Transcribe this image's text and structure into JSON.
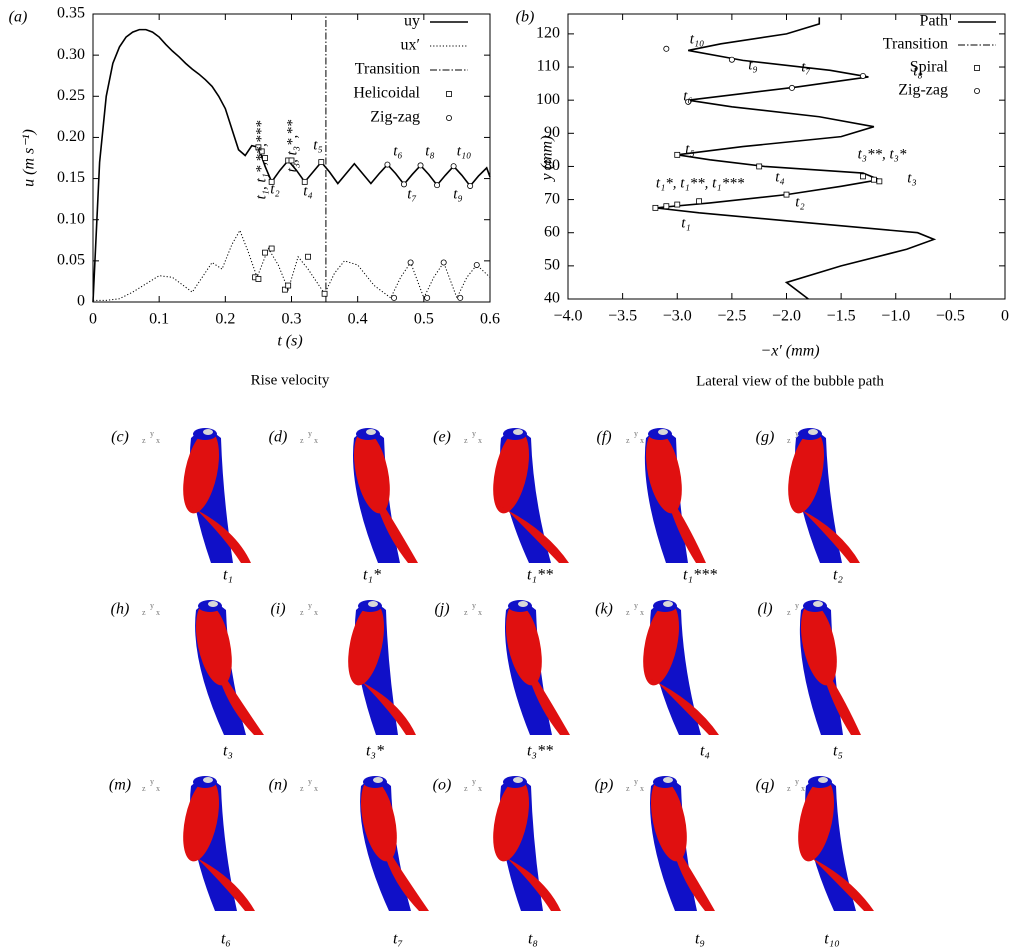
{
  "chart_data": [
    {
      "type": "line",
      "panel": "(a)",
      "xlabel": "t (s)",
      "ylabel": "u (m s⁻¹)",
      "caption": "Rise velocity",
      "xlim": [
        0,
        0.6
      ],
      "ylim": [
        0,
        0.35
      ],
      "xticks": [
        0,
        0.1,
        0.2,
        0.3,
        0.4,
        0.5,
        0.6
      ],
      "yticks": [
        0,
        0.05,
        {
          "value": 0.1,
          "label": "0.10"
        },
        0.15,
        {
          "value": 0.2,
          "label": "0.20"
        },
        0.25,
        {
          "value": 0.3,
          "label": "0.30"
        },
        0.35
      ],
      "legend": "upper right",
      "series": [
        {
          "name": "uy",
          "color": "#000",
          "style": "solid",
          "x": [
            0,
            0.01,
            0.02,
            0.03,
            0.04,
            0.05,
            0.06,
            0.07,
            0.08,
            0.09,
            0.1,
            0.11,
            0.12,
            0.13,
            0.14,
            0.15,
            0.16,
            0.17,
            0.18,
            0.19,
            0.2,
            0.21,
            0.22,
            0.23,
            0.24,
            0.25,
            0.26,
            0.27,
            0.2825,
            0.295,
            0.3075,
            0.32,
            0.3325,
            0.345,
            0.3575,
            0.37,
            0.3825,
            0.395,
            0.4075,
            0.42,
            0.4325,
            0.445,
            0.4575,
            0.47,
            0.4825,
            0.495,
            0.5075,
            0.52,
            0.5325,
            0.545,
            0.5575,
            0.57,
            0.5825,
            0.595,
            0.6
          ],
          "values": [
            0,
            0.17,
            0.25,
            0.29,
            0.31,
            0.322,
            0.328,
            0.331,
            0.331,
            0.328,
            0.322,
            0.313,
            0.305,
            0.298,
            0.29,
            0.283,
            0.277,
            0.27,
            0.262,
            0.25,
            0.235,
            0.21,
            0.185,
            0.178,
            0.19,
            0.188,
            0.165,
            0.146,
            0.16,
            0.172,
            0.16,
            0.146,
            0.158,
            0.17,
            0.158,
            0.144,
            0.156,
            0.168,
            0.156,
            0.144,
            0.156,
            0.167,
            0.156,
            0.143,
            0.155,
            0.166,
            0.155,
            0.142,
            0.154,
            0.165,
            0.154,
            0.141,
            0.153,
            0.163,
            0.152
          ]
        },
        {
          "name": "ux′",
          "color": "#000",
          "style": "dotted",
          "x": [
            0,
            0.02,
            0.04,
            0.06,
            0.08,
            0.1,
            0.12,
            0.14,
            0.15,
            0.165,
            0.18,
            0.195,
            0.21,
            0.222,
            0.235,
            0.248,
            0.265,
            0.28,
            0.295,
            0.31,
            0.325,
            0.35,
            0.365,
            0.38,
            0.4,
            0.425,
            0.45,
            0.465,
            0.48,
            0.5,
            0.515,
            0.53,
            0.55,
            0.565,
            0.58,
            0.6
          ],
          "values": [
            0.002,
            0.002,
            0.004,
            0.012,
            0.022,
            0.032,
            0.03,
            0.018,
            0.012,
            0.03,
            0.048,
            0.04,
            0.07,
            0.087,
            0.06,
            0.03,
            0.065,
            0.045,
            0.015,
            0.055,
            0.04,
            0.01,
            0.035,
            0.05,
            0.045,
            0.02,
            0.005,
            0.03,
            0.048,
            0.005,
            0.03,
            0.048,
            0.005,
            0.03,
            0.045,
            0.03
          ]
        },
        {
          "name": "Transition",
          "color": "#000",
          "style": "dashdot",
          "x": [
            0.352,
            0.352
          ],
          "values": [
            0,
            0.35
          ]
        },
        {
          "name": "Helicoidal",
          "color": "#000",
          "marker": "square",
          "x": [
            0.25,
            0.255,
            0.26,
            0.27,
            0.295,
            0.3,
            0.32,
            0.345,
            0.245,
            0.25,
            0.26,
            0.27,
            0.29,
            0.295,
            0.325,
            0.35
          ],
          "values": [
            0.188,
            0.183,
            0.175,
            0.146,
            0.172,
            0.172,
            0.146,
            0.17,
            0.03,
            0.028,
            0.06,
            0.065,
            0.015,
            0.02,
            0.055,
            0.01
          ]
        },
        {
          "name": "Zig-zag",
          "color": "#000",
          "marker": "circle",
          "x": [
            0.445,
            0.47,
            0.495,
            0.52,
            0.545,
            0.57,
            0.455,
            0.48,
            0.505,
            0.53,
            0.555,
            0.58
          ],
          "values": [
            0.167,
            0.143,
            0.166,
            0.142,
            0.165,
            0.141,
            0.005,
            0.048,
            0.005,
            0.048,
            0.005,
            0.045
          ]
        }
      ],
      "annotations": [
        "t₁, t₁*,**,***",
        "t₃, t₃*,**",
        "t₅",
        "t₂",
        "t₄",
        "t₆",
        "t₈",
        "t₁₀",
        "t₇",
        "t₉"
      ]
    },
    {
      "type": "line",
      "panel": "(b)",
      "xlabel": "−x′ (mm)",
      "ylabel": "y (mm)",
      "caption": "Lateral view of the bubble path",
      "xlim": [
        -4,
        0
      ],
      "ylim": [
        40,
        126
      ],
      "xticks": [
        {
          "value": -4,
          "label": "−4.0"
        },
        {
          "value": -3.5,
          "label": "−3.5"
        },
        {
          "value": -3,
          "label": "−3.0"
        },
        {
          "value": -2.5,
          "label": "−2.5"
        },
        {
          "value": -2,
          "label": "−2.0"
        },
        {
          "value": -1.5,
          "label": "−1.5"
        },
        {
          "value": -1,
          "label": "−1.0"
        },
        {
          "value": -0.5,
          "label": "−0.5"
        },
        0
      ],
      "yticks": [
        40,
        50,
        60,
        70,
        80,
        90,
        100,
        110,
        120
      ],
      "legend": "upper right",
      "series": [
        {
          "name": "Path",
          "color": "#000",
          "style": "solid",
          "x": [
            -1.8,
            -2.0,
            -1.5,
            -0.9,
            -0.65,
            -0.8,
            -1.8,
            -2.8,
            -3.2,
            -2.7,
            -2.0,
            -1.5,
            -1.15,
            -1.3,
            -2.2,
            -2.7,
            -3.0,
            -2.4,
            -1.5,
            -1.2,
            -1.7,
            -2.5,
            -2.9,
            -2.4,
            -1.9,
            -1.25,
            -1.6,
            -2.4,
            -2.9,
            -2.6,
            -2.0,
            -1.7,
            -1.7
          ],
          "values": [
            40,
            45,
            50,
            55,
            58,
            60,
            63,
            66,
            67.5,
            69,
            71.5,
            74,
            76,
            78,
            80,
            82,
            83.5,
            86,
            89,
            92,
            95,
            98,
            100,
            102,
            104,
            107,
            109,
            112,
            115,
            117,
            120,
            123,
            125
          ]
        },
        {
          "name": "Transition",
          "color": "#000",
          "style": "dashdot",
          "x": [],
          "values": []
        },
        {
          "name": "Spiral",
          "color": "#000",
          "marker": "square",
          "x": [
            -3.2,
            -3.1,
            -3.0,
            -2.8,
            -2.25,
            -2.0,
            -1.3,
            -1.2,
            -1.15,
            -3.0
          ],
          "values": [
            67.5,
            68,
            68.5,
            69.5,
            80,
            71.5,
            77,
            76,
            75.5,
            83.5
          ]
        },
        {
          "name": "Zig-zag",
          "color": "#000",
          "marker": "circle",
          "x": [
            -3.1,
            -2.5,
            -1.95,
            -1.3,
            -2.9
          ],
          "values": [
            115.5,
            112.2,
            103.7,
            107.3,
            99.5
          ]
        }
      ],
      "annotations": [
        "t₁₀",
        "t₉",
        "t₇",
        "t₈",
        "t₆",
        "t₅",
        "t₄",
        "t₃**, t₃*",
        "t₃",
        "t₁*, t₁**, t₁***",
        "t₂",
        "t₁"
      ]
    }
  ],
  "snapshots": [
    {
      "label": "(c)",
      "time": "t₁"
    },
    {
      "label": "(d)",
      "time": "t₁*"
    },
    {
      "label": "(e)",
      "time": "t₁**"
    },
    {
      "label": "(f)",
      "time": "t₁***"
    },
    {
      "label": "(g)",
      "time": "t₂"
    },
    {
      "label": "(h)",
      "time": "t₃"
    },
    {
      "label": "(i)",
      "time": "t₃*"
    },
    {
      "label": "(j)",
      "time": "t₃**"
    },
    {
      "label": "(k)",
      "time": "t₄"
    },
    {
      "label": "(l)",
      "time": "t₅"
    },
    {
      "label": "(m)",
      "time": "t₆"
    },
    {
      "label": "(n)",
      "time": "t₇"
    },
    {
      "label": "(o)",
      "time": "t₈"
    },
    {
      "label": "(p)",
      "time": "t₉"
    },
    {
      "label": "(q)",
      "time": "t₁₀"
    }
  ],
  "triad": [
    "z",
    "y",
    "x"
  ]
}
